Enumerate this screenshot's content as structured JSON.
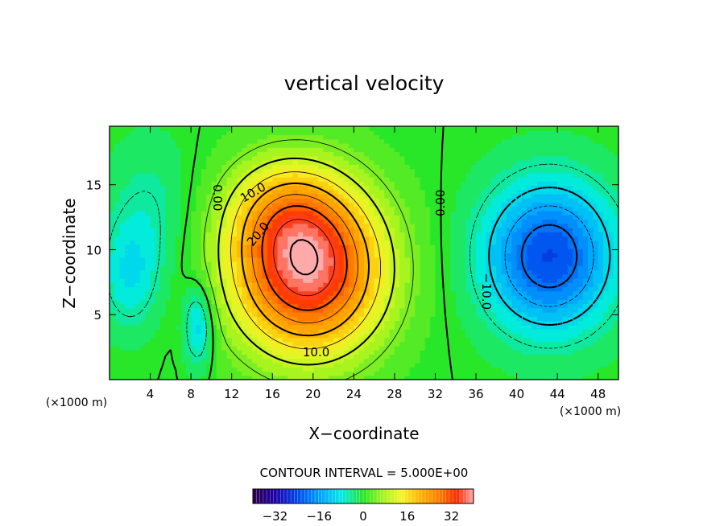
{
  "chart_data": {
    "type": "contour",
    "title": "vertical velocity",
    "xlabel": "X−coordinate",
    "ylabel": "Z−coordinate",
    "x_unit_left": "(×1000 m)",
    "x_unit_right": "(×1000 m)",
    "xlim": [
      0,
      50
    ],
    "ylim": [
      0,
      19.5
    ],
    "xticks": [
      4,
      8,
      12,
      16,
      20,
      24,
      28,
      32,
      36,
      40,
      44,
      48
    ],
    "xtick_labels": [
      "4",
      "8",
      "12",
      "16",
      "20",
      "24",
      "28",
      "32",
      "36",
      "40",
      "44",
      "48"
    ],
    "yticks": [
      5,
      10,
      15
    ],
    "ytick_labels": [
      "5",
      "10",
      "15"
    ],
    "contour_interval_text": "CONTOUR INTERVAL = 5.000E+00",
    "contour_interval": 5,
    "contour_labels": [
      {
        "text": "0.00",
        "x": 10.6,
        "y": 14.0,
        "angle": 90
      },
      {
        "text": "10.0",
        "x": 14.1,
        "y": 14.4,
        "angle": -30
      },
      {
        "text": "20.0",
        "x": 14.6,
        "y": 11.2,
        "angle": -50
      },
      {
        "text": "10.0",
        "x": 20.3,
        "y": 2.1,
        "angle": 0
      },
      {
        "text": "0.00",
        "x": 32.5,
        "y": 13.6,
        "angle": -90
      },
      {
        "text": "−10.0",
        "x": 37.0,
        "y": 6.8,
        "angle": 90
      }
    ],
    "field_cells": [
      {
        "x": 19.5,
        "y": 8.5,
        "amp": 38,
        "sx": 5.2,
        "sy": 4.5
      },
      {
        "x": 17.0,
        "y": 13.0,
        "amp": 10,
        "sx": 4.0,
        "sy": 3.0
      },
      {
        "x": 43.2,
        "y": 9.5,
        "amp": -24,
        "sx": 4.5,
        "sy": 4.0
      },
      {
        "x": 8.7,
        "y": 4.2,
        "amp": -12,
        "sx": 1.0,
        "sy": 2.2
      },
      {
        "x": 2.0,
        "y": 8.0,
        "amp": -8,
        "sx": 2.0,
        "sy": 3.0
      },
      {
        "x": 4.0,
        "y": 13.0,
        "amp": -5,
        "sx": 3.0,
        "sy": 4.0
      }
    ],
    "colorbar": {
      "range": [
        -40,
        40
      ],
      "ticks": [
        -32,
        -16,
        0,
        16,
        32
      ],
      "tick_labels": [
        "−32",
        "−16",
        "0",
        "16",
        "32"
      ]
    }
  }
}
